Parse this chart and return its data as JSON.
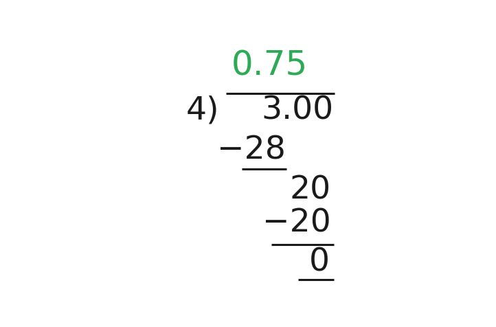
{
  "background_color": "#ffffff",
  "text_color": "#1a1a1a",
  "green_color": "#2daa55",
  "quotient": "0.75",
  "divisor": "4",
  "paren": ")",
  "dividend": "3.00",
  "step1_subtract": "−28",
  "step1_result": "20",
  "step2_subtract": "−20",
  "step2_result": "0",
  "font_size": 34
}
